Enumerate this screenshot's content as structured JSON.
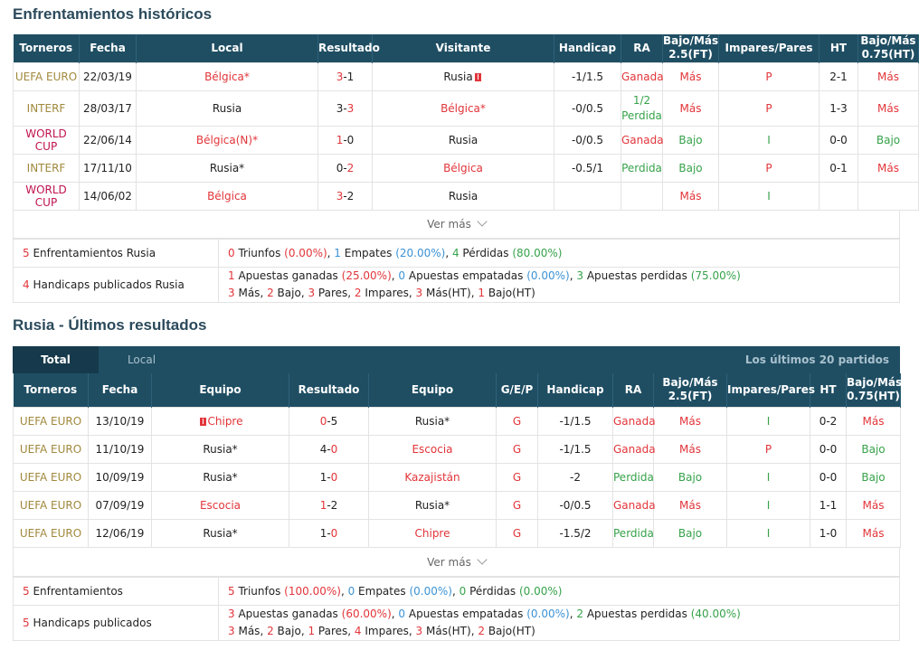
{
  "h2h": {
    "title": "Enfrentamientos históricos",
    "headers": [
      "Torneros",
      "Fecha",
      "Local",
      "Resultado",
      "Visitante",
      "Handicap",
      "RA",
      "Bajo/Más 2.5(FT)",
      "Impares/Pares",
      "HT",
      "Bajo/Más 0.75(HT)"
    ],
    "rows": [
      {
        "league": "UEFA EURO",
        "date": "22/03/19",
        "home": "Bélgica*",
        "res_a": "3",
        "res_b": "1",
        "away": "Rusia",
        "hcp": "-1/1.5",
        "ra": "Ganada",
        "ou25": "Más",
        "op": "P",
        "ht": "2-1",
        "ou075": "Más"
      },
      {
        "league": "INTERF",
        "date": "28/03/17",
        "home": "Rusia",
        "res_a": "3",
        "res_b": "3",
        "away": "Bélgica*",
        "hcp": "-0/0.5",
        "ra_top": "1/2",
        "ra": "Perdida",
        "ou25": "Más",
        "op": "P",
        "ht": "1-3",
        "ou075": "Más"
      },
      {
        "league": "WORLD CUP",
        "date": "22/06/14",
        "home": "Bélgica(N)*",
        "res_a": "1",
        "res_b": "0",
        "away": "Rusia",
        "hcp": "-0/0.5",
        "ra": "Ganada",
        "ou25": "Bajo",
        "op": "I",
        "ht": "0-0",
        "ou075": "Bajo"
      },
      {
        "league": "INTERF",
        "date": "17/11/10",
        "home": "Rusia*",
        "res_a": "0",
        "res_b": "2",
        "away": "Bélgica",
        "hcp": "-0.5/1",
        "ra": "Perdida",
        "ou25": "Bajo",
        "op": "P",
        "ht": "0-1",
        "ou075": "Más"
      },
      {
        "league": "WORLD CUP",
        "date": "14/06/02",
        "home": "Bélgica",
        "res_a": "3",
        "res_b": "2",
        "away": "Rusia",
        "hcp": "",
        "ra": "",
        "ou25": "Más",
        "op": "I",
        "ht": "",
        "ou075": ""
      }
    ],
    "ver_mas": "Ver más",
    "summary1": {
      "count": "5",
      "label": "Enfrentamientos Rusia",
      "w": "0",
      "w_label": "Triunfos",
      "w_pct": "(0.00%)",
      "d": "1",
      "d_label": "Empates",
      "d_pct": "(20.00%)",
      "l": "4",
      "l_label": "Pérdidas",
      "l_pct": "(80.00%)"
    },
    "summary2": {
      "count": "4",
      "label": "Handicaps publicados Rusia",
      "w": "1",
      "w_label": "Apuestas ganadas",
      "w_pct": "(25.00%)",
      "d": "0",
      "d_label": "Apuestas empatadas",
      "d_pct": "(0.00%)",
      "l": "3",
      "l_label": "Apuestas perdidas",
      "l_pct": "(75.00%)",
      "line2": [
        [
          "3",
          "Más"
        ],
        [
          "2",
          "Bajo"
        ],
        [
          "3",
          "Pares"
        ],
        [
          "2",
          "Impares"
        ],
        [
          "3",
          "Más(HT)"
        ],
        [
          "1",
          "Bajo(HT)"
        ]
      ]
    }
  },
  "recent": {
    "title": "Rusia - Últimos resultados",
    "tabs": {
      "total": "Total",
      "local": "Local",
      "right": "Los últimos 20 partidos"
    },
    "headers": [
      "Torneros",
      "Fecha",
      "Equipo",
      "Resultado",
      "Equipo",
      "G/E/P",
      "Handicap",
      "RA",
      "Bajo/Más 2.5(FT)",
      "Impares/Pares",
      "HT",
      "Bajo/Más 0.75(HT)"
    ],
    "rows": [
      {
        "league": "UEFA EURO",
        "date": "13/10/19",
        "home": "Chipre",
        "res_a": "0",
        "res_b": "5",
        "away": "Rusia*",
        "gep": "G",
        "hcp": "-1/1.5",
        "ra": "Ganada",
        "ou25": "Más",
        "op": "I",
        "ht": "0-2",
        "ou075": "Más"
      },
      {
        "league": "UEFA EURO",
        "date": "11/10/19",
        "home": "Rusia*",
        "res_a": "4",
        "res_b": "0",
        "away": "Escocia",
        "gep": "G",
        "hcp": "-1/1.5",
        "ra": "Ganada",
        "ou25": "Más",
        "op": "P",
        "ht": "0-0",
        "ou075": "Bajo"
      },
      {
        "league": "UEFA EURO",
        "date": "10/09/19",
        "home": "Rusia*",
        "res_a": "1",
        "res_b": "0",
        "away": "Kazajistán",
        "gep": "G",
        "hcp": "-2",
        "ra": "Perdida",
        "ou25": "Bajo",
        "op": "I",
        "ht": "0-0",
        "ou075": "Bajo"
      },
      {
        "league": "UEFA EURO",
        "date": "07/09/19",
        "home": "Escocia",
        "res_a": "1",
        "res_b": "2",
        "away": "Rusia*",
        "gep": "G",
        "hcp": "-0/0.5",
        "ra": "Ganada",
        "ou25": "Más",
        "op": "I",
        "ht": "1-1",
        "ou075": "Más"
      },
      {
        "league": "UEFA EURO",
        "date": "12/06/19",
        "home": "Rusia*",
        "res_a": "1",
        "res_b": "0",
        "away": "Chipre",
        "gep": "G",
        "hcp": "-1.5/2",
        "ra": "Perdida",
        "ou25": "Bajo",
        "op": "I",
        "ht": "1-0",
        "ou075": "Más"
      }
    ],
    "ver_mas": "Ver más",
    "summary1": {
      "count": "5",
      "label": "Enfrentamientos",
      "w": "5",
      "w_label": "Triunfos",
      "w_pct": "(100.00%)",
      "d": "0",
      "d_label": "Empates",
      "d_pct": "(0.00%)",
      "l": "0",
      "l_label": "Pérdidas",
      "l_pct": "(0.00%)"
    },
    "summary2": {
      "count": "5",
      "label": "Handicaps publicados",
      "w": "3",
      "w_label": "Apuestas ganadas",
      "w_pct": "(60.00%)",
      "d": "0",
      "d_label": "Apuestas empatadas",
      "d_pct": "(0.00%)",
      "l": "2",
      "l_label": "Apuestas perdidas",
      "l_pct": "(40.00%)",
      "line2": [
        [
          "3",
          "Más"
        ],
        [
          "2",
          "Bajo"
        ],
        [
          "1",
          "Pares"
        ],
        [
          "4",
          "Impares"
        ],
        [
          "3",
          "Más(HT)"
        ],
        [
          "2",
          "Bajo(HT)"
        ]
      ]
    }
  },
  "colors": {
    "header": "#1f4e63",
    "red": "#e2353a",
    "green": "#36a24a",
    "blue": "#3c93d5",
    "league_gold": "#a0893d",
    "league_wc": "#c0134f"
  }
}
